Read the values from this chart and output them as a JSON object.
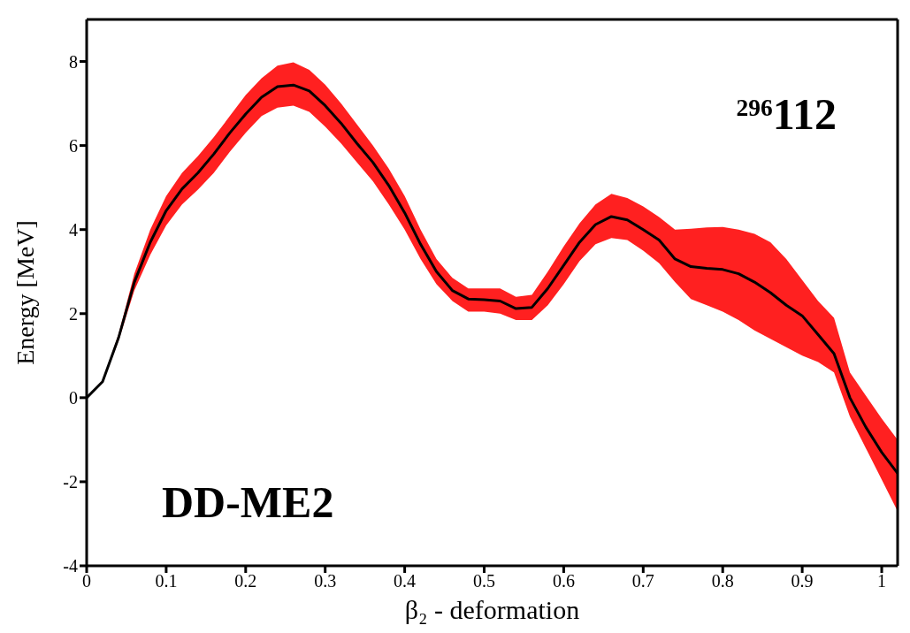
{
  "chart_data": {
    "type": "line",
    "xlabel": "β₂  - deformation",
    "ylabel": "Energy  [MeV]",
    "annotations": [
      "$^{296}$112",
      "DD-ME2"
    ],
    "x": [
      0,
      0.02,
      0.04,
      0.06,
      0.08,
      0.1,
      0.12,
      0.14,
      0.16,
      0.18,
      0.2,
      0.22,
      0.24,
      0.26,
      0.28,
      0.3,
      0.32,
      0.34,
      0.36,
      0.38,
      0.4,
      0.42,
      0.44,
      0.46,
      0.48,
      0.5,
      0.52,
      0.54,
      0.56,
      0.58,
      0.6,
      0.62,
      0.64,
      0.66,
      0.68,
      0.7,
      0.72,
      0.74,
      0.76,
      0.78,
      0.8,
      0.82,
      0.84,
      0.86,
      0.88,
      0.9,
      0.92,
      0.94,
      0.96,
      0.98,
      1.0,
      1.02
    ],
    "series": [
      {
        "color": "#000000",
        "values": [
          0,
          0.38,
          1.42,
          2.75,
          3.7,
          4.45,
          4.97,
          5.35,
          5.8,
          6.3,
          6.75,
          7.15,
          7.4,
          7.44,
          7.3,
          6.95,
          6.53,
          6.05,
          5.6,
          5.05,
          4.4,
          3.65,
          3.0,
          2.55,
          2.35,
          2.33,
          2.3,
          2.12,
          2.15,
          2.6,
          3.15,
          3.7,
          4.12,
          4.31,
          4.23,
          4.0,
          3.75,
          3.3,
          3.12,
          3.08,
          3.05,
          2.95,
          2.75,
          2.5,
          2.2,
          1.95,
          1.5,
          1.05,
          0.0,
          -0.7,
          -1.3,
          -1.8
        ],
        "lower": [
          0,
          0.35,
          1.35,
          2.55,
          3.4,
          4.1,
          4.6,
          4.95,
          5.35,
          5.85,
          6.3,
          6.7,
          6.9,
          6.95,
          6.8,
          6.45,
          6.05,
          5.6,
          5.15,
          4.6,
          4.0,
          3.3,
          2.7,
          2.3,
          2.05,
          2.05,
          2.0,
          1.85,
          1.85,
          2.2,
          2.7,
          3.25,
          3.65,
          3.8,
          3.75,
          3.5,
          3.2,
          2.75,
          2.35,
          2.2,
          2.05,
          1.85,
          1.6,
          1.4,
          1.2,
          1.0,
          0.85,
          0.6,
          -0.45,
          -1.2,
          -1.95,
          -2.7
        ],
        "upper": [
          0,
          0.41,
          1.5,
          2.95,
          4.0,
          4.8,
          5.35,
          5.75,
          6.2,
          6.7,
          7.2,
          7.6,
          7.9,
          7.98,
          7.8,
          7.45,
          7.0,
          6.5,
          6.0,
          5.45,
          4.8,
          4.0,
          3.3,
          2.85,
          2.6,
          2.6,
          2.6,
          2.4,
          2.45,
          3.0,
          3.6,
          4.15,
          4.6,
          4.85,
          4.75,
          4.55,
          4.3,
          4.0,
          4.02,
          4.05,
          4.06,
          4.0,
          3.9,
          3.7,
          3.3,
          2.8,
          2.3,
          1.9,
          0.6,
          0.05,
          -0.5,
          -1.0
        ]
      }
    ],
    "xlim": [
      0,
      1.02
    ],
    "xticks": [
      0,
      0.1,
      0.2,
      0.3,
      0.4,
      0.5,
      0.6,
      0.7,
      0.8,
      0.9,
      1
    ],
    "ylim": [
      -4,
      9
    ],
    "yticks": [
      -4,
      -2,
      0,
      2,
      4,
      6,
      8
    ],
    "marker": "none",
    "line_style": "solid"
  }
}
